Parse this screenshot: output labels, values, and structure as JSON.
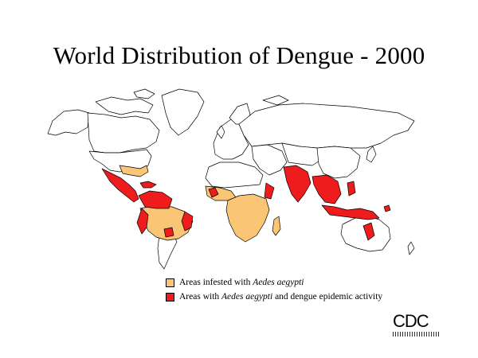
{
  "title": "World Distribution of Dengue - 2000",
  "legend": {
    "items": [
      {
        "pre": "Areas infested with ",
        "em": "Aedes aegypti",
        "post": "",
        "color": "#FAC675"
      },
      {
        "pre": "Areas with ",
        "em": "Aedes aegypti",
        "post": " and dengue epidemic activity",
        "color": "#EE1C1C"
      }
    ]
  },
  "logo": {
    "text": "CDC"
  },
  "colors": {
    "infested": "#FAC675",
    "epidemic": "#EE1C1C",
    "land": "#FFFFFF",
    "border": "#000000"
  }
}
